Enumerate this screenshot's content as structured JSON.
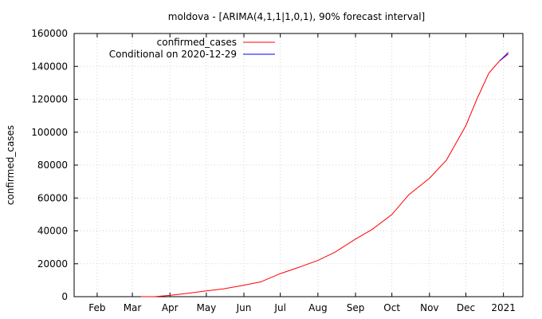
{
  "chart_data": {
    "type": "line",
    "title": "moldova -  [ARIMA(4,1,1|1,0,1), 90% forecast interval]",
    "xlabel": "",
    "ylabel": "confirmed_cases",
    "xlim": [
      "2020-01-13",
      "2021-01-17"
    ],
    "ylim": [
      0,
      160000
    ],
    "x_ticks": [
      {
        "date": "2020-02-01",
        "label": "Feb"
      },
      {
        "date": "2020-03-01",
        "label": "Mar"
      },
      {
        "date": "2020-04-01",
        "label": "Apr"
      },
      {
        "date": "2020-05-01",
        "label": "May"
      },
      {
        "date": "2020-06-01",
        "label": "Jun"
      },
      {
        "date": "2020-07-01",
        "label": "Jul"
      },
      {
        "date": "2020-08-01",
        "label": "Aug"
      },
      {
        "date": "2020-09-01",
        "label": "Sep"
      },
      {
        "date": "2020-10-01",
        "label": "Oct"
      },
      {
        "date": "2020-11-01",
        "label": "Nov"
      },
      {
        "date": "2020-12-01",
        "label": "Dec"
      },
      {
        "date": "2021-01-01",
        "label": "2021"
      }
    ],
    "y_ticks": [
      0,
      20000,
      40000,
      60000,
      80000,
      100000,
      120000,
      140000,
      160000
    ],
    "grid": true,
    "legend_position": "top-left",
    "series": [
      {
        "name": "confirmed_cases",
        "color": "#ff0000",
        "points": [
          [
            "2020-03-08",
            0
          ],
          [
            "2020-03-20",
            50
          ],
          [
            "2020-04-01",
            800
          ],
          [
            "2020-04-15",
            2000
          ],
          [
            "2020-05-01",
            3500
          ],
          [
            "2020-05-15",
            4700
          ],
          [
            "2020-06-01",
            7000
          ],
          [
            "2020-06-15",
            9000
          ],
          [
            "2020-07-01",
            14000
          ],
          [
            "2020-07-15",
            17500
          ],
          [
            "2020-08-01",
            22000
          ],
          [
            "2020-08-15",
            27000
          ],
          [
            "2020-09-01",
            35000
          ],
          [
            "2020-09-15",
            41000
          ],
          [
            "2020-10-01",
            50000
          ],
          [
            "2020-10-15",
            62000
          ],
          [
            "2020-11-01",
            72000
          ],
          [
            "2020-11-15",
            83000
          ],
          [
            "2020-12-01",
            104000
          ],
          [
            "2020-12-10",
            120000
          ],
          [
            "2020-12-20",
            136000
          ],
          [
            "2020-12-29",
            143500
          ],
          [
            "2021-01-05",
            147500
          ]
        ]
      },
      {
        "name": "Conditional on 2020-12-29",
        "color": "#0000ff",
        "points": [
          [
            "2020-12-29",
            143500
          ],
          [
            "2021-01-01",
            145500
          ],
          [
            "2021-01-05",
            148500
          ]
        ]
      }
    ]
  }
}
